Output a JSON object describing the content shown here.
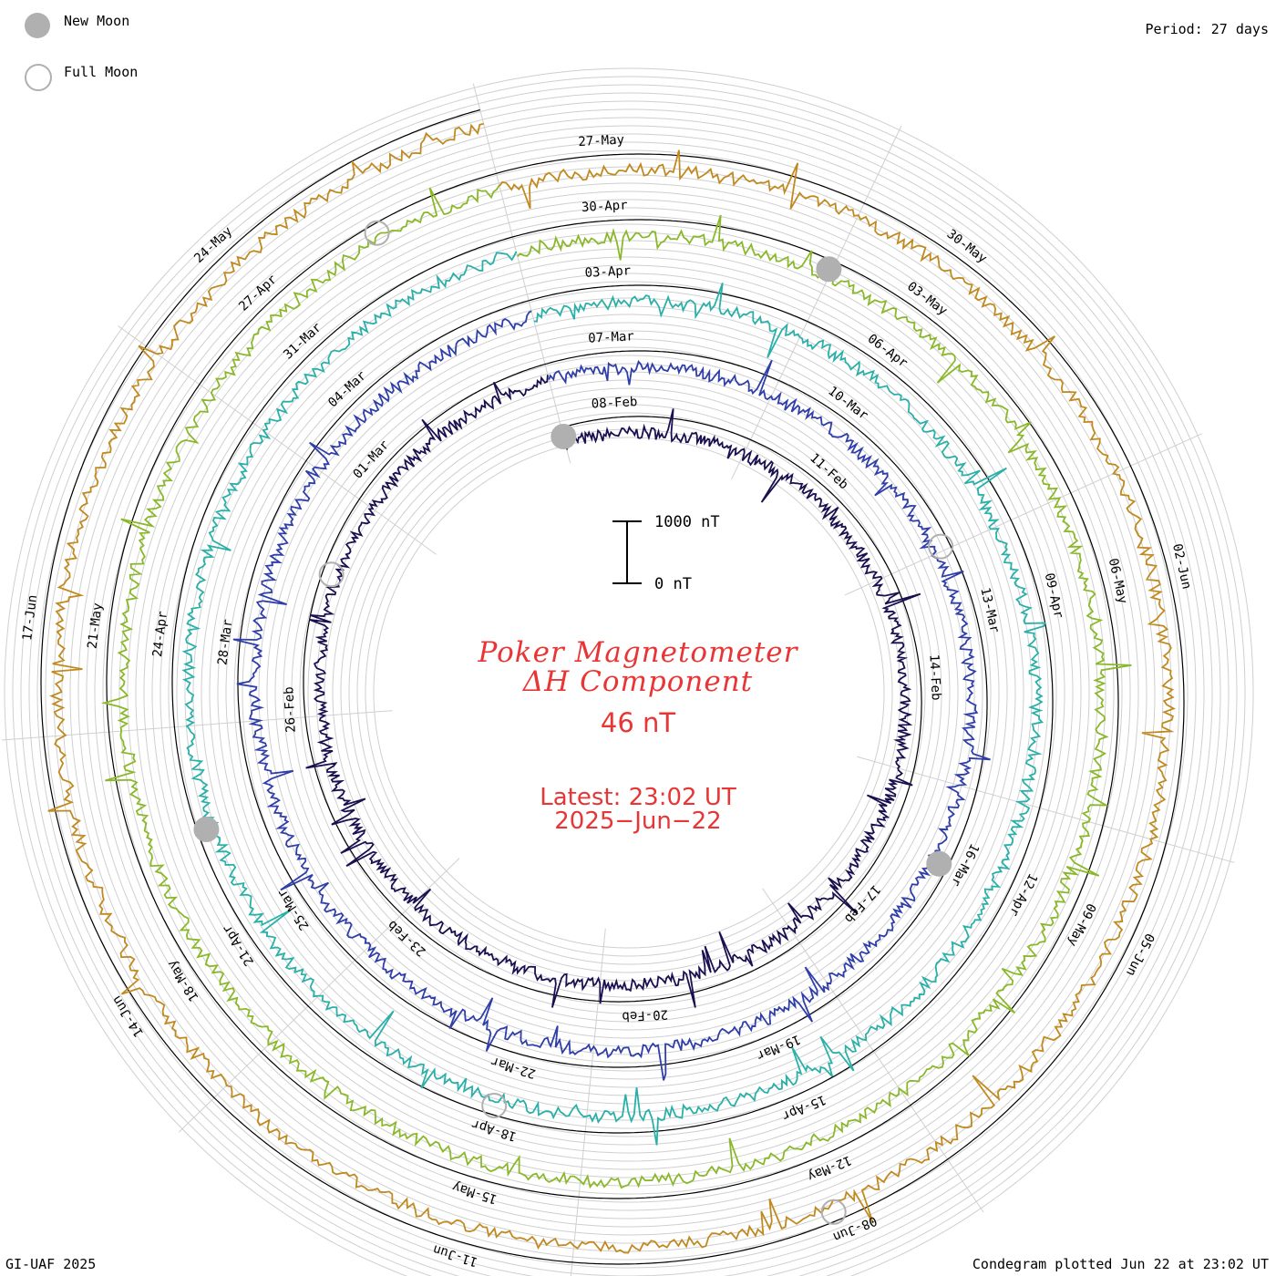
{
  "legend": {
    "new_moon": "New Moon",
    "full_moon": "Full Moon",
    "new_moon_color": "#b0b0b0",
    "full_moon_color": "#b0b0b0"
  },
  "header": {
    "period": "Period: 27 days"
  },
  "footer": {
    "credit": "GI-UAF 2025",
    "plotted": "Condegram plotted Jun 22 at 23:02 UT"
  },
  "title": {
    "line1": "Poker Magnetometer",
    "line2": "ΔH Component",
    "color": "#e83535"
  },
  "current_value": "46 nT",
  "latest": {
    "time": "Latest: 23:02 UT",
    "date": "2025−Jun−22"
  },
  "scale_bar": {
    "top_label": "1000 nT",
    "bottom_label": "0 nT"
  },
  "chart_data": {
    "type": "line",
    "subtype": "condegram-spiral",
    "period_days": 27,
    "cycles": [
      {
        "name": "Feb",
        "color": "#1a1050",
        "ticks": [
          "08-Feb",
          "11-Feb",
          "14-Feb",
          "17-Feb",
          "20-Feb",
          "23-Feb",
          "26-Feb",
          "01-Mar"
        ]
      },
      {
        "name": "Mar",
        "color": "#2f3ea8",
        "ticks": [
          "07-Mar",
          "10-Mar",
          "13-Mar",
          "16-Mar",
          "19-Mar",
          "22-Mar",
          "25-Mar",
          "28-Mar",
          "04-Mar"
        ]
      },
      {
        "name": "Apr",
        "color": "#2ab0a8",
        "ticks": [
          "03-Apr",
          "06-Apr",
          "09-Apr",
          "12-Apr",
          "15-Apr",
          "18-Apr",
          "21-Apr",
          "24-Apr",
          "31-Mar"
        ]
      },
      {
        "name": "May",
        "color": "#8ab82a",
        "ticks": [
          "30-Apr",
          "03-May",
          "06-May",
          "09-May",
          "12-May",
          "15-May",
          "18-May",
          "21-May",
          "27-Apr"
        ]
      },
      {
        "name": "Jun",
        "color": "#c08a20",
        "ticks": [
          "27-May",
          "30-May",
          "02-Jun",
          "05-Jun",
          "08-Jun",
          "11-Jun",
          "14-Jun",
          "17-Jun",
          "24-May"
        ]
      }
    ],
    "moon_phases": [
      {
        "phase": "new",
        "date": "27-May"
      },
      {
        "phase": "new",
        "date": "27-Apr"
      },
      {
        "phase": "new",
        "date": "28-Mar"
      },
      {
        "phase": "new",
        "date": "28-Feb"
      },
      {
        "phase": "full",
        "date": "12-Feb"
      },
      {
        "phase": "full",
        "date": "14-Mar"
      },
      {
        "phase": "full",
        "date": "13-Apr"
      },
      {
        "phase": "full",
        "date": "12-May"
      },
      {
        "phase": "full",
        "date": "11-Jun"
      }
    ],
    "units": "nT"
  }
}
